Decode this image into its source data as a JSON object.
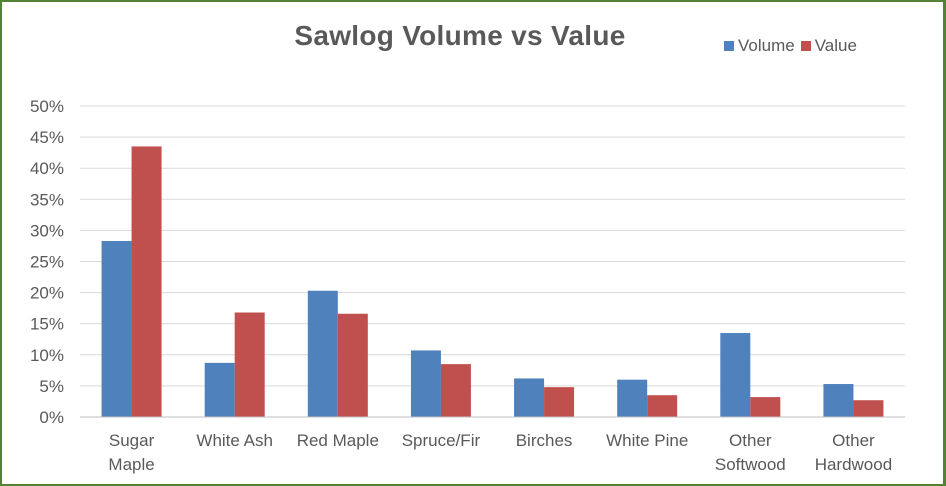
{
  "chart_data": {
    "type": "bar",
    "title": "Sawlog Volume vs Value",
    "xlabel": "",
    "ylabel": "",
    "ylim": [
      0,
      50
    ],
    "y_tick_format": "percent",
    "yticks": [
      "0%",
      "5%",
      "10%",
      "15%",
      "20%",
      "25%",
      "30%",
      "35%",
      "40%",
      "45%",
      "50%"
    ],
    "grid": true,
    "legend_position": "top-right",
    "categories": [
      [
        "Sugar",
        "Maple"
      ],
      [
        "White Ash"
      ],
      [
        "Red Maple"
      ],
      [
        "Spruce/Fir"
      ],
      [
        "Birches"
      ],
      [
        "White Pine"
      ],
      [
        "Other",
        "Softwood"
      ],
      [
        "Other",
        "Hardwood"
      ]
    ],
    "series": [
      {
        "name": "Volume",
        "color": "#4f81bd",
        "values": [
          28.3,
          8.7,
          20.3,
          10.7,
          6.2,
          6.0,
          13.5,
          5.3
        ]
      },
      {
        "name": "Value",
        "color": "#c0504d",
        "values": [
          43.5,
          16.8,
          16.6,
          8.5,
          4.8,
          3.5,
          3.2,
          2.7
        ]
      }
    ]
  }
}
